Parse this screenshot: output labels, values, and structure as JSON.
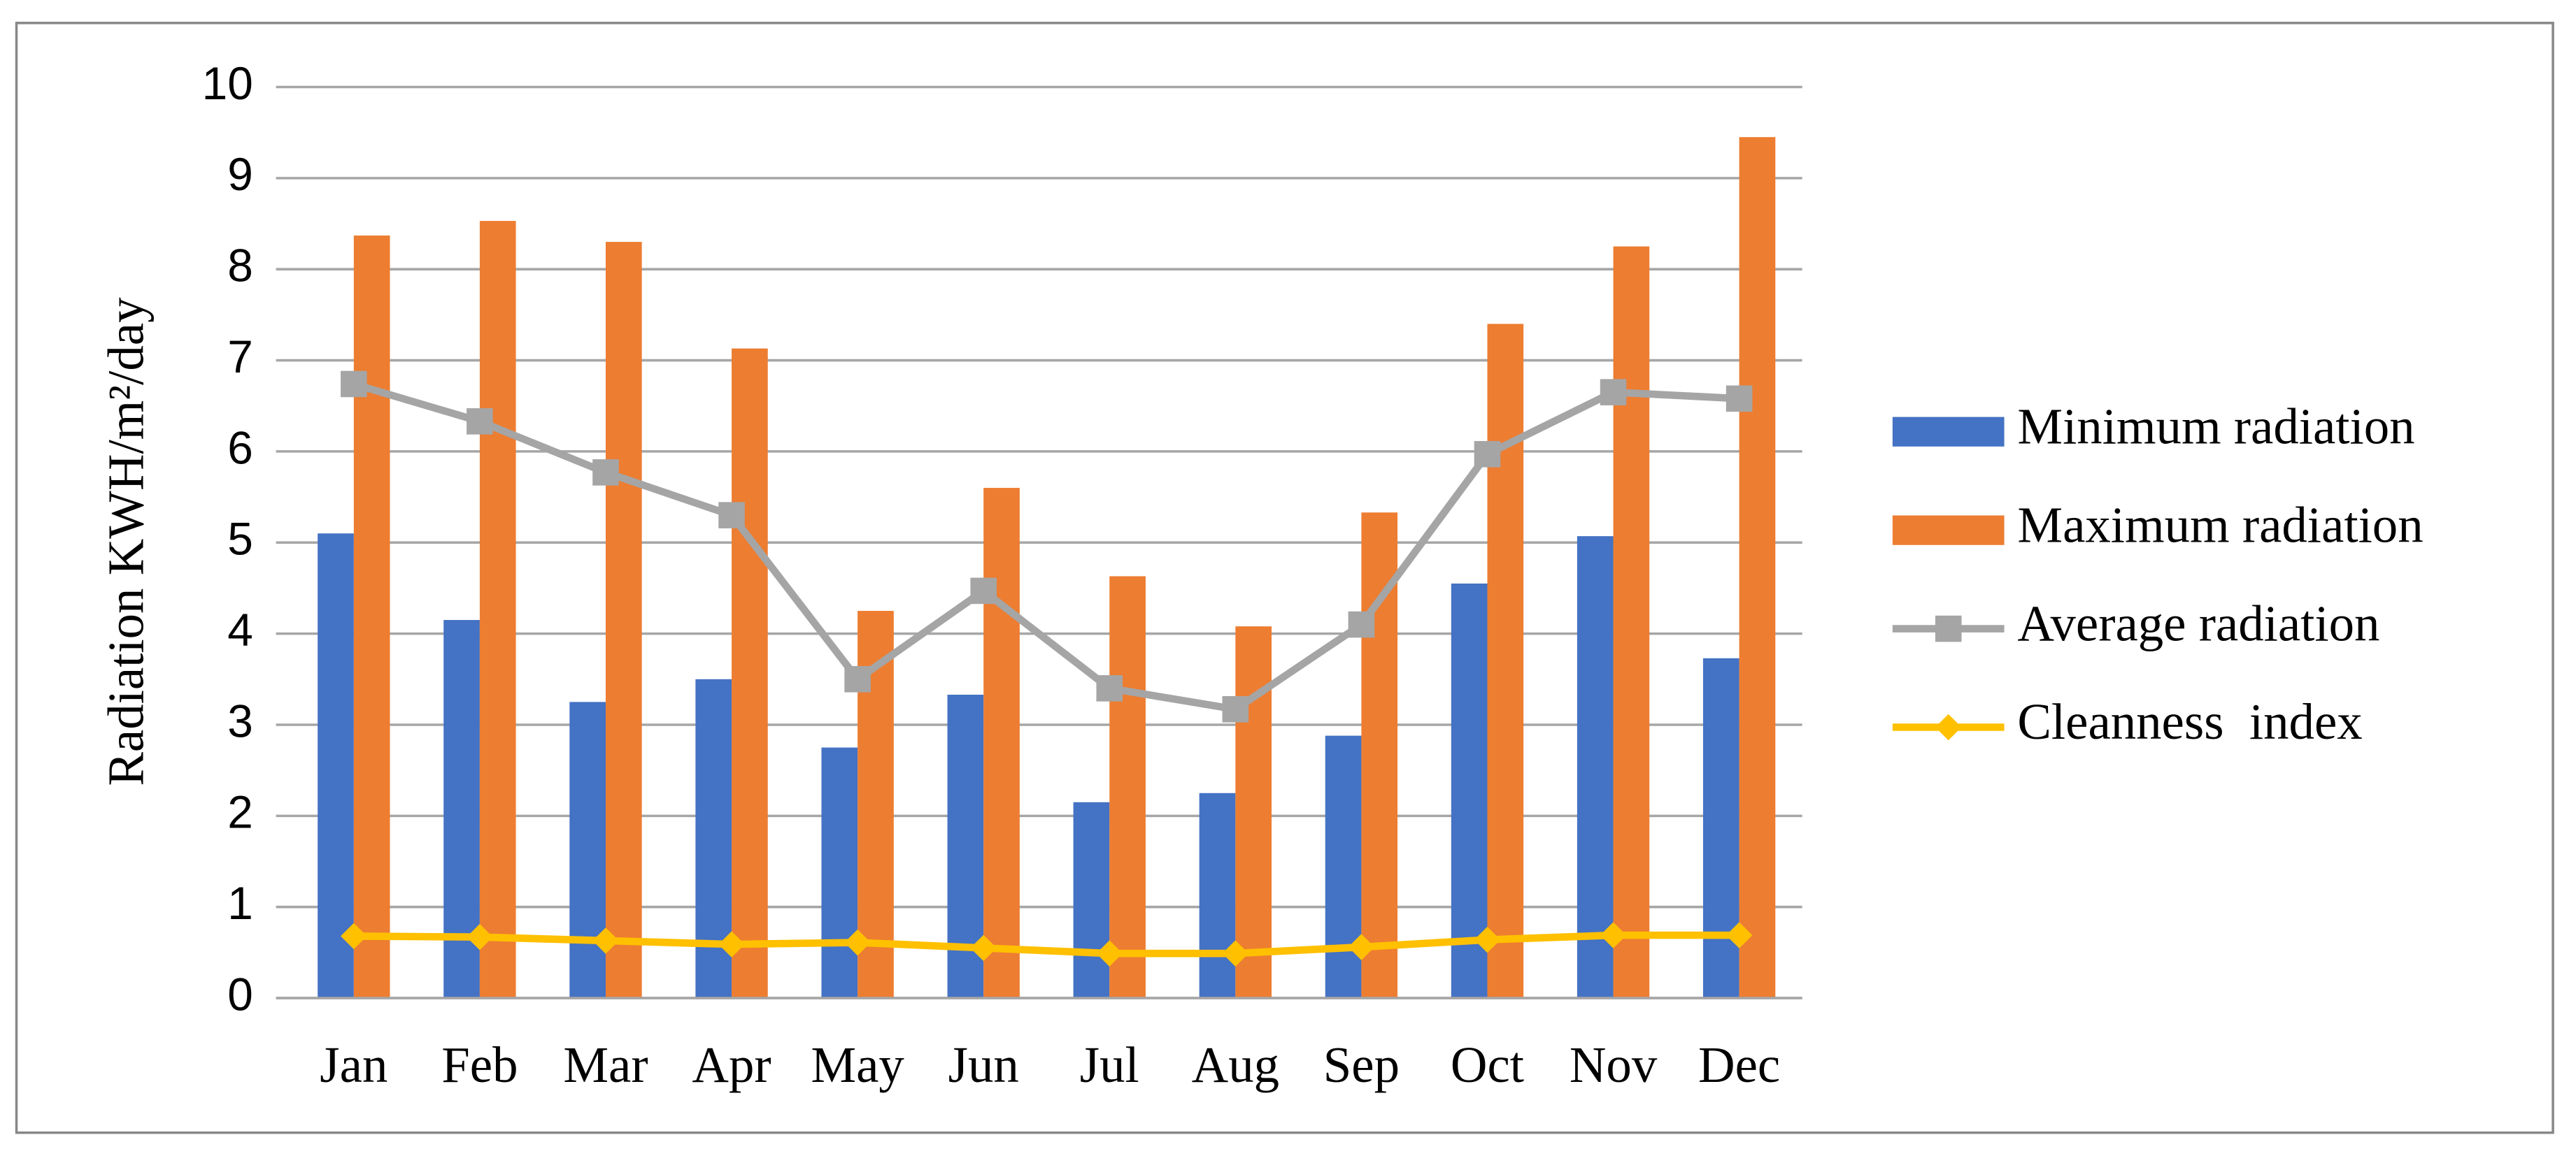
{
  "chart_data": {
    "type": "bar",
    "y_label": "Radiation KWH/m²/day",
    "categories": [
      "Jan",
      "Feb",
      "Mar",
      "Apr",
      "May",
      "Jun",
      "Jul",
      "Aug",
      "Sep",
      "Oct",
      "Nov",
      "Dec"
    ],
    "series": [
      {
        "name": "Minimum radiation",
        "type": "bar",
        "color": "#4472c4",
        "values": [
          5.1,
          4.15,
          3.25,
          3.5,
          2.75,
          3.33,
          2.15,
          2.25,
          2.88,
          4.55,
          5.07,
          3.73
        ]
      },
      {
        "name": "Maximum radiation",
        "type": "bar",
        "color": "#ed7d31",
        "values": [
          8.37,
          8.53,
          8.3,
          7.13,
          4.25,
          5.6,
          4.63,
          4.08,
          5.33,
          7.4,
          8.25,
          9.45
        ]
      },
      {
        "name": "Average radiation",
        "type": "line",
        "marker": "square",
        "color": "#a5a5a5",
        "values": [
          6.74,
          6.33,
          5.77,
          5.3,
          3.5,
          4.47,
          3.4,
          3.17,
          4.1,
          5.97,
          6.65,
          6.58
        ]
      },
      {
        "name": "Cleanness  index",
        "type": "line",
        "marker": "diamond",
        "color": "#ffc000",
        "values": [
          0.68,
          0.67,
          0.63,
          0.59,
          0.61,
          0.55,
          0.49,
          0.49,
          0.56,
          0.64,
          0.69,
          0.69
        ]
      }
    ],
    "ylim": [
      0,
      10
    ],
    "yticks": [
      0,
      1,
      2,
      3,
      4,
      5,
      6,
      7,
      8,
      9,
      10
    ],
    "grid": true,
    "legend": "right"
  }
}
